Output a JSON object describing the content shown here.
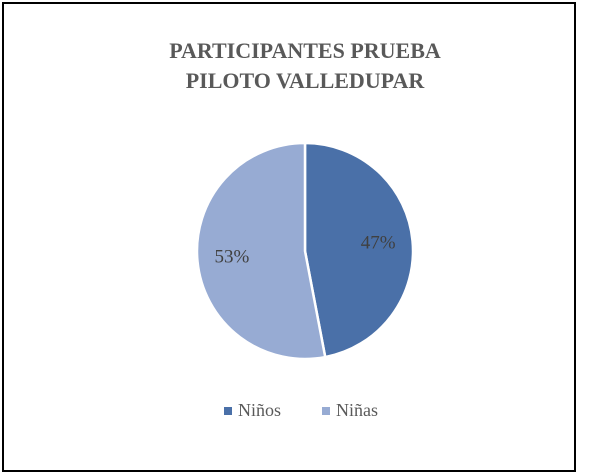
{
  "chart_data": {
    "type": "pie",
    "title": "PARTICIPANTES PRUEBA PILOTO VALLEDUPAR",
    "categories": [
      "Niños",
      "Niñas"
    ],
    "values": [
      47,
      53
    ],
    "value_labels": [
      "47%",
      "53%"
    ],
    "colors": [
      "#4a70a8",
      "#97abd3"
    ],
    "legend": "bottom"
  }
}
